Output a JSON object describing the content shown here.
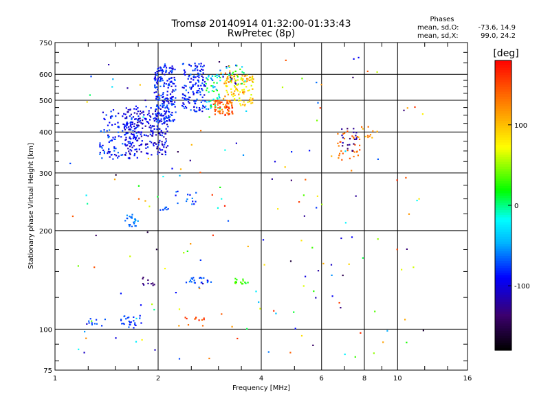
{
  "chart_data": {
    "type": "scatter",
    "title": "Tromsø 20140914 01:32:00-01:33:43",
    "subtitle": "RwPretec (8p)",
    "xlabel": "Frequency [MHz]",
    "ylabel": "Stationary phase Virtual Height [km]",
    "x_scale": "log",
    "y_scale": "log",
    "xlim": [
      1,
      16
    ],
    "ylim": [
      75,
      750
    ],
    "x_ticks": [
      "1",
      "2",
      "4",
      "6",
      "8",
      "10",
      "16"
    ],
    "y_ticks": [
      "75",
      "100",
      "200",
      "300",
      "400",
      "500",
      "600",
      "750"
    ],
    "grid": true,
    "stats": {
      "heading": "Phases",
      "line1_label": "mean, sd,O:",
      "line1_value": "-73.6, 14.9",
      "line2_label": "mean, sd,X:",
      "line2_value": "99.0, 24.2"
    },
    "colorbar": {
      "label": "[deg]",
      "range": [
        -180,
        180
      ],
      "ticks": [
        "100",
        "0",
        "-100"
      ],
      "tick_values": [
        100,
        0,
        -100
      ]
    },
    "clusters": [
      {
        "f": [
          1.35,
          1.75
        ],
        "h": [
          330,
          470
        ],
        "phase": [
          -110,
          -60
        ],
        "n": 140
      },
      {
        "f": [
          1.6,
          2.15
        ],
        "h": [
          340,
          480
        ],
        "phase": [
          -125,
          -75
        ],
        "n": 220
      },
      {
        "f": [
          1.95,
          2.25
        ],
        "h": [
          430,
          640
        ],
        "phase": [
          -110,
          -60
        ],
        "n": 200
      },
      {
        "f": [
          2.35,
          2.75
        ],
        "h": [
          460,
          650
        ],
        "phase": [
          -110,
          -60
        ],
        "n": 140
      },
      {
        "f": [
          2.75,
          3.05
        ],
        "h": [
          470,
          600
        ],
        "phase": [
          -70,
          30
        ],
        "n": 50
      },
      {
        "f": [
          2.9,
          3.3
        ],
        "h": [
          450,
          500
        ],
        "phase": [
          110,
          170
        ],
        "n": 70
      },
      {
        "f": [
          3.1,
          3.8
        ],
        "h": [
          480,
          600
        ],
        "phase": [
          60,
          130
        ],
        "n": 110
      },
      {
        "f": [
          3.0,
          3.6
        ],
        "h": [
          560,
          640
        ],
        "phase": [
          -140,
          150
        ],
        "n": 40
      },
      {
        "f": [
          1.6,
          1.75
        ],
        "h": [
          205,
          225
        ],
        "phase": [
          -75,
          -50
        ],
        "n": 25
      },
      {
        "f": [
          2.0,
          2.15
        ],
        "h": [
          230,
          236
        ],
        "phase": [
          -80,
          -60
        ],
        "n": 8
      },
      {
        "f": [
          2.25,
          2.6
        ],
        "h": [
          240,
          265
        ],
        "phase": [
          -90,
          -55
        ],
        "n": 14
      },
      {
        "f": [
          1.8,
          1.95
        ],
        "h": [
          135,
          145
        ],
        "phase": [
          -140,
          -120
        ],
        "n": 10
      },
      {
        "f": [
          2.4,
          2.9
        ],
        "h": [
          138,
          144
        ],
        "phase": [
          -95,
          -60
        ],
        "n": 20
      },
      {
        "f": [
          3.3,
          3.7
        ],
        "h": [
          137,
          143
        ],
        "phase": [
          20,
          45
        ],
        "n": 14
      },
      {
        "f": [
          1.55,
          1.8
        ],
        "h": [
          101,
          110
        ],
        "phase": [
          -90,
          -65
        ],
        "n": 25
      },
      {
        "f": [
          1.25,
          1.42
        ],
        "h": [
          102,
          108
        ],
        "phase": [
          -85,
          -65
        ],
        "n": 10
      },
      {
        "f": [
          2.4,
          2.75
        ],
        "h": [
          102,
          112
        ],
        "phase": [
          120,
          170
        ],
        "n": 10
      },
      {
        "f": [
          6.6,
          7.8
        ],
        "h": [
          330,
          410
        ],
        "phase": [
          120,
          150
        ],
        "n": 30
      },
      {
        "f": [
          6.8,
          7.6
        ],
        "h": [
          350,
          410
        ],
        "phase": [
          -140,
          -110
        ],
        "n": 20
      },
      {
        "f": [
          7.6,
          8.8
        ],
        "h": [
          380,
          415
        ],
        "phase": [
          100,
          140
        ],
        "n": 12
      },
      {
        "f": [
          1.1,
          12
        ],
        "h": [
          80,
          680
        ],
        "phase": [
          -160,
          170
        ],
        "n": 180
      }
    ]
  }
}
